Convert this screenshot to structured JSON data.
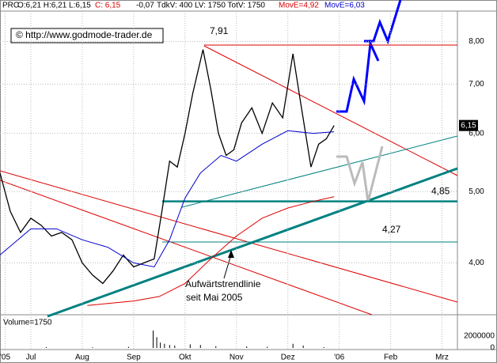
{
  "header": {
    "symbol": "PRC",
    "ohlc": "O:6,21 H:6,21 L:6,15",
    "close": "C: 6,15",
    "change": "-0,07",
    "volumes": "TdkV: 400 LV: 1750 TotV: 1750"
  },
  "copyright": "© http://www.godmode-trader.de",
  "chart_data": [
    {
      "type": "line",
      "log_scale": true,
      "grid": true,
      "xlim": [
        6.4,
        15.3
      ],
      "xticks": [
        {
          "value": 6.5,
          "label": "'05"
        },
        {
          "value": 7,
          "label": "Jul"
        },
        {
          "value": 8,
          "label": "Aug"
        },
        {
          "value": 9,
          "label": "Sep"
        },
        {
          "value": 10,
          "label": "Okt"
        },
        {
          "value": 11,
          "label": "Nov"
        },
        {
          "value": 12,
          "label": "Dez"
        },
        {
          "value": 13,
          "label": "'06"
        },
        {
          "value": 14,
          "label": "Feb"
        },
        {
          "value": 15,
          "label": "Mrz"
        }
      ],
      "ylim": [
        3.4,
        8.8
      ],
      "yticks": [
        {
          "value": 4,
          "label": "4,00"
        },
        {
          "value": 5,
          "label": "5,00"
        },
        {
          "value": 6,
          "label": "6,00"
        },
        {
          "value": 7,
          "label": "7,00"
        },
        {
          "value": 8,
          "label": "8,00"
        }
      ],
      "series": [
        {
          "color": "#000000",
          "x": [
            6.4,
            6.6,
            6.8,
            7.0,
            7.2,
            7.4,
            7.6,
            7.8,
            8.0,
            8.2,
            8.4,
            8.6,
            8.8,
            9.0,
            9.2,
            9.4,
            9.55,
            9.7,
            9.85,
            10.0,
            10.15,
            10.35,
            10.5,
            10.65,
            10.8,
            10.95,
            11.1,
            11.3,
            11.5,
            11.7,
            11.9,
            12.1,
            12.25,
            12.45,
            12.6,
            12.75,
            12.9
          ],
          "values": [
            5.3,
            4.7,
            4.4,
            4.6,
            4.5,
            4.35,
            4.4,
            4.3,
            4.0,
            3.85,
            3.75,
            3.9,
            4.1,
            3.95,
            4.0,
            4.05,
            4.7,
            5.5,
            5.4,
            6.0,
            6.8,
            7.8,
            6.9,
            6.0,
            5.6,
            5.7,
            6.2,
            6.5,
            6.0,
            6.6,
            6.3,
            7.7,
            6.6,
            5.4,
            5.8,
            5.9,
            6.15
          ]
        },
        {
          "name": "MovE=4,92",
          "color": "#dd0000",
          "x": [
            8.1,
            9.0,
            9.5,
            10.0,
            10.5,
            11.0,
            11.5,
            12.0,
            12.5,
            12.9
          ],
          "values": [
            3.5,
            3.55,
            3.6,
            3.75,
            4.05,
            4.35,
            4.6,
            4.75,
            4.85,
            4.92
          ]
        },
        {
          "name": "MovE=6,03",
          "color": "#0000cc",
          "x": [
            6.4,
            7.0,
            7.5,
            8.0,
            8.5,
            9.0,
            9.4,
            9.7,
            10.0,
            10.3,
            10.7,
            11.0,
            11.5,
            12.0,
            12.5,
            12.9
          ],
          "values": [
            4.1,
            4.45,
            4.45,
            4.3,
            4.2,
            4.0,
            3.95,
            4.3,
            4.9,
            5.3,
            5.6,
            5.5,
            5.8,
            6.05,
            6.0,
            6.03
          ]
        }
      ],
      "last_price": {
        "value": 6.15,
        "label": "6,15"
      },
      "levels": [
        {
          "value": 7.91,
          "label": "7,91",
          "color": "#dd0000"
        },
        {
          "value": 4.85,
          "label": "4,85",
          "color": "#008080"
        },
        {
          "value": 4.27,
          "label": "4,27",
          "color": "#008080"
        }
      ],
      "annotation": [
        "Aufwärtstrendlinie",
        "seit Mai 2005"
      ]
    },
    {
      "type": "bar",
      "title": "Volume=1750",
      "color": "#000000",
      "x": [
        7.3,
        8.2,
        8.9,
        9.38,
        9.45,
        9.52,
        9.6,
        9.7,
        9.8,
        10.1,
        10.3,
        10.6,
        11.2,
        11.6,
        12.1,
        12.3,
        12.7
      ],
      "values": [
        150000,
        120000,
        200000,
        2900000,
        1800000,
        900000,
        700000,
        500000,
        400000,
        600000,
        500000,
        300000,
        250000,
        200000,
        700000,
        400000,
        150000
      ],
      "ylim": [
        0,
        5000000
      ],
      "yticks": [
        0,
        2000000
      ]
    }
  ]
}
